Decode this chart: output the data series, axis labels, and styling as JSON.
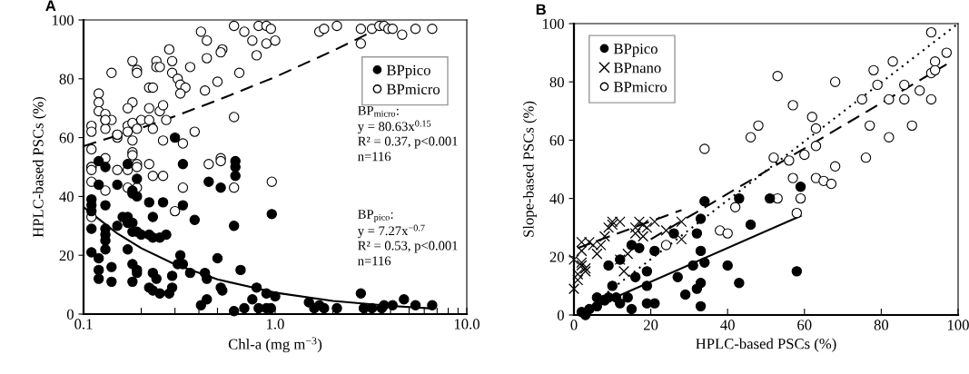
{
  "chart_data": [
    {
      "type": "scatter",
      "title": "A",
      "xlabel": "Chl-a (mg m$^{−3}$)",
      "ylabel": "HPLC-based PSCs (%)",
      "log": "x",
      "xlim": [
        0.1,
        10
      ],
      "ylim": [
        0,
        100
      ],
      "xticks": [
        {
          "value": 0.1,
          "label": "0.1"
        },
        {
          "value": 0.2,
          "label": null
        },
        {
          "value": 0.3,
          "label": null
        },
        {
          "value": 0.4,
          "label": null
        },
        {
          "value": 0.5,
          "label": null
        },
        {
          "value": 0.6,
          "label": null
        },
        {
          "value": 0.7,
          "label": null
        },
        {
          "value": 0.8,
          "label": null
        },
        {
          "value": 0.9,
          "label": null
        },
        {
          "value": 1,
          "label": "1.0"
        },
        {
          "value": 2,
          "label": null
        },
        {
          "value": 3,
          "label": null
        },
        {
          "value": 4,
          "label": null
        },
        {
          "value": 5,
          "label": null
        },
        {
          "value": 6,
          "label": null
        },
        {
          "value": 7,
          "label": null
        },
        {
          "value": 8,
          "label": null
        },
        {
          "value": 9,
          "label": null
        },
        {
          "value": 10,
          "label": "10.0"
        }
      ],
      "yticks": [
        0,
        20,
        40,
        60,
        80,
        100
      ],
      "legend": "top right",
      "annotations": [
        "BP$_{micro}$:",
        "y = 80.63x$^{0.15}$",
        "R² = 0.37, p<0.001",
        "n=116",
        "BP$_{pico}$:",
        "y = 7.27x$^{−0.7}$",
        "R² = 0.53, p<0.001",
        "n=116"
      ],
      "series": [
        {
          "name": "BPpico",
          "marker": "circle",
          "color": "#000000",
          "x": [
            0.3,
            0.12,
            0.13,
            0.17,
            0.19,
            0.33,
            0.12,
            0.15,
            0.45,
            0.52,
            0.62,
            0.62,
            0.62,
            0.11,
            0.11,
            0.11,
            0.13,
            0.18,
            0.18,
            0.19,
            0.22,
            0.26,
            0.33,
            0.38,
            0.16,
            0.17,
            0.17,
            0.18,
            0.23,
            0.61,
            0.96,
            0.11,
            0.13,
            0.13,
            0.13,
            0.13,
            0.15,
            0.18,
            0.19,
            0.2,
            0.22,
            0.23,
            0.25,
            0.27,
            0.11,
            0.12,
            0.12,
            0.14,
            0.17,
            0.18,
            0.19,
            0.19,
            0.12,
            0.14,
            0.18,
            0.23,
            0.24,
            0.22,
            0.23,
            0.25,
            0.29,
            0.29,
            0.28,
            0.32,
            0.31,
            0.33,
            0.36,
            0.43,
            0.44,
            0.5,
            0.66,
            0.52,
            0.53,
            0.41,
            0.44,
            0.61,
            0.69,
            0.76,
            0.8,
            0.82,
            0.9,
            0.95,
            0.9,
            1.0,
            1.5,
            1.6,
            1.7,
            1.8,
            2.1,
            2.8,
            2.9,
            3.2,
            3.6,
            3.7,
            4.1,
            4.7,
            5.4,
            6.6
          ],
          "values": [
            60,
            52,
            50,
            51,
            46,
            51,
            44,
            44,
            45,
            43,
            52,
            50,
            47,
            39,
            37,
            35,
            37,
            42,
            41,
            40,
            38,
            38,
            37,
            32,
            33,
            33,
            31,
            31,
            33,
            30,
            34,
            29,
            27,
            25,
            22,
            29,
            30,
            28,
            28,
            27,
            27,
            26,
            26,
            27,
            21,
            19,
            15,
            16,
            22,
            17,
            15,
            14,
            12,
            11,
            11,
            14,
            12,
            9,
            8,
            7,
            13,
            9,
            7,
            20,
            17,
            17,
            14,
            14,
            12,
            19,
            15,
            9,
            8,
            3,
            5,
            1,
            2,
            5,
            9,
            2,
            2,
            2,
            7,
            6,
            4,
            2,
            3,
            2,
            2,
            7,
            2,
            2,
            2,
            3,
            3,
            5,
            3,
            3
          ]
        },
        {
          "name": "BPmicro",
          "marker": "circle",
          "color": "#ffffff",
          "x": [
            0.61,
            0.41,
            0.44,
            0.69,
            0.82,
            0.9,
            0.95,
            0.76,
            0.9,
            1.0,
            0.8,
            0.53,
            0.52,
            0.28,
            0.29,
            0.44,
            0.36,
            0.29,
            0.31,
            0.32,
            0.34,
            0.32,
            0.43,
            0.5,
            0.65,
            0.61,
            0.38,
            0.33,
            0.18,
            0.19,
            0.19,
            0.24,
            0.24,
            0.25,
            0.22,
            0.23,
            0.14,
            0.12,
            0.12,
            0.12,
            0.13,
            0.13,
            0.14,
            0.13,
            0.11,
            0.11,
            0.13,
            0.2,
            0.22,
            0.18,
            0.17,
            0.17,
            0.18,
            0.19,
            0.17,
            0.22,
            0.25,
            0.26,
            0.27,
            0.23,
            0.18,
            0.26,
            0.15,
            0.15,
            0.15,
            0.11,
            0.11,
            0.11,
            0.11,
            0.13,
            0.15,
            0.18,
            0.18,
            0.19,
            0.19,
            0.17,
            0.22,
            0.23,
            0.26,
            0.11,
            0.13,
            0.17,
            0.19,
            0.33,
            0.3,
            0.45,
            0.52,
            0.52,
            0.61,
            0.96,
            0.11,
            1.7,
            1.8,
            2.1,
            2.8,
            3.2,
            3.5,
            3.7,
            3.9,
            4.1,
            4.6,
            5.4,
            6.6,
            2.8
          ],
          "values": [
            98,
            96,
            93,
            96,
            98,
            98,
            97,
            93,
            92,
            93,
            88,
            90,
            89,
            90,
            86,
            87,
            84,
            82,
            80,
            78,
            77,
            75,
            76,
            79,
            82,
            67,
            62,
            58,
            86,
            83,
            82,
            86,
            84,
            84,
            77,
            77,
            82,
            75,
            72,
            69,
            68,
            66,
            66,
            63,
            64,
            62,
            66,
            66,
            66,
            72,
            70,
            64,
            65,
            63,
            62,
            70,
            69,
            71,
            66,
            63,
            59,
            59,
            60,
            61,
            61,
            56,
            50,
            50,
            49,
            53,
            49,
            55,
            54,
            51,
            50,
            49,
            51,
            47,
            47,
            45,
            42,
            43,
            43,
            43,
            35,
            51,
            53,
            52,
            43,
            45,
            33,
            96,
            97,
            98,
            97,
            97,
            98,
            98,
            97,
            97,
            95,
            97,
            97,
            92
          ]
        },
        {
          "type": "line",
          "line_style": "dashed",
          "color": "#000000",
          "x": [
            0.1,
            0.2,
            0.3,
            0.5,
            1,
            2,
            3,
            4
          ],
          "values": [
            57.1,
            63.3,
            67.3,
            72.7,
            80.6,
            89.5,
            95.1,
            99.3
          ]
        },
        {
          "type": "line",
          "line_style": "solid",
          "color": "#000000",
          "x": [
            0.1,
            0.15,
            0.2,
            0.3,
            0.5,
            1,
            2,
            4,
            6.6
          ],
          "values": [
            36.4,
            27.4,
            22.4,
            16.9,
            11.8,
            7.3,
            4.5,
            2.8,
            1.9
          ]
        }
      ]
    },
    {
      "type": "scatter",
      "title": "B",
      "xlabel": "HPLC-based PSCs (%)",
      "ylabel": "Slope-based PSCs (%)",
      "xlim": [
        0,
        100
      ],
      "ylim": [
        0,
        100
      ],
      "xticks": [
        0,
        20,
        40,
        60,
        80,
        100
      ],
      "yticks": [
        0,
        20,
        40,
        60,
        80,
        100
      ],
      "legend": "top left",
      "series": [
        {
          "name": "BPpico",
          "marker": "circle",
          "color": "#000000",
          "x": [
            2,
            3,
            4,
            6,
            6,
            8,
            9,
            11,
            12,
            14,
            15,
            9,
            12,
            10,
            15,
            17,
            16,
            19,
            19,
            19,
            21,
            21,
            26,
            27,
            29,
            31,
            32,
            32,
            33,
            33,
            34,
            34,
            33,
            33,
            40,
            43,
            43,
            51,
            46,
            59,
            58
          ],
          "values": [
            1,
            0,
            2,
            3,
            6,
            5,
            6,
            6,
            4,
            6,
            2,
            17,
            19,
            10,
            24,
            23,
            13,
            15,
            10,
            4,
            4,
            22,
            28,
            13,
            7,
            17,
            28,
            9,
            33,
            22,
            39,
            18,
            11,
            3,
            17,
            11,
            40,
            40,
            31,
            44,
            15
          ]
        },
        {
          "name": "BPnano",
          "marker": "cross",
          "color": "#000000",
          "x": [
            0,
            1,
            1,
            2,
            0,
            2,
            3,
            3,
            2,
            4,
            5,
            6,
            7,
            8,
            9,
            10,
            10,
            12,
            12,
            13,
            14,
            16,
            16,
            17,
            18,
            19,
            21,
            28,
            28,
            24,
            18,
            2
          ],
          "values": [
            9,
            12,
            14,
            17,
            19,
            18,
            16,
            15,
            25,
            25,
            24,
            21,
            24,
            27,
            30,
            32,
            31,
            32,
            19,
            15,
            21,
            28,
            30,
            32,
            31,
            30,
            32,
            26,
            32,
            29,
            27,
            22
          ]
        },
        {
          "name": "BPmicro",
          "marker": "circle",
          "color": "#ffffff",
          "x": [
            24,
            38,
            40,
            42,
            93,
            97,
            94,
            93,
            94,
            83,
            78,
            79,
            86,
            86,
            90,
            93,
            82,
            75,
            88,
            77,
            82,
            76,
            68,
            53,
            57,
            62,
            63,
            63,
            60,
            56,
            52,
            48,
            46,
            57,
            63,
            65,
            67,
            68,
            53,
            59,
            58,
            34
          ],
          "values": [
            24,
            29,
            28,
            37,
            97,
            90,
            87,
            83,
            84,
            87,
            84,
            79,
            79,
            74,
            77,
            74,
            74,
            74,
            65,
            65,
            61,
            54,
            80,
            82,
            72,
            68,
            64,
            58,
            55,
            53,
            54,
            65,
            61,
            47,
            47,
            46,
            45,
            51,
            40,
            40,
            35,
            57
          ]
        },
        {
          "type": "line",
          "line_style": "solid",
          "color": "#000000",
          "x": [
            2,
            59
          ],
          "values": [
            1,
            34
          ]
        },
        {
          "type": "line",
          "line_style": "dashed",
          "color": "#000000",
          "x": [
            1,
            28
          ],
          "values": [
            23,
            36
          ]
        },
        {
          "type": "line",
          "line_style": "dashed",
          "color": "#000000",
          "x": [
            20,
            97
          ],
          "values": [
            26,
            86
          ]
        },
        {
          "type": "line",
          "line_style": "dotted",
          "color": "#000000",
          "x": [
            6,
            100
          ],
          "values": [
            5,
            100
          ]
        }
      ]
    }
  ]
}
